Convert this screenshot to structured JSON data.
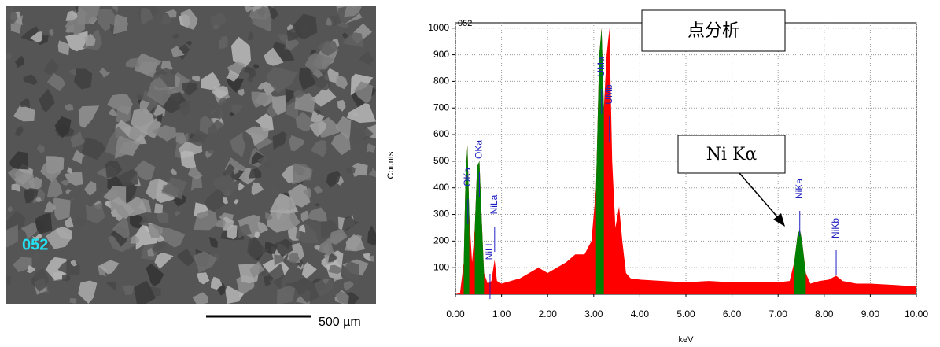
{
  "image": {
    "label": "052",
    "scale_bar": "500 µm"
  },
  "chart_data": {
    "type": "area",
    "title": "052",
    "ylabel": "Counts",
    "xlabel": "keV",
    "annotations": [
      "点分析",
      "Ni Kα"
    ],
    "xlim": [
      0,
      10
    ],
    "ylim": [
      0,
      1020
    ],
    "xticks": [
      {
        "value": 0,
        "label": "0.00"
      },
      {
        "value": 1,
        "label": "1.00"
      },
      {
        "value": 2,
        "label": "2.00"
      },
      {
        "value": 3,
        "label": "3.00"
      },
      {
        "value": 4,
        "label": "4.00"
      },
      {
        "value": 5,
        "label": "5.00"
      },
      {
        "value": 6,
        "label": "6.00"
      },
      {
        "value": 7,
        "label": "7.00"
      },
      {
        "value": 8,
        "label": "8.00"
      },
      {
        "value": 9,
        "label": "9.00"
      },
      {
        "value": 10,
        "label": "10.00"
      }
    ],
    "yticks": [
      100,
      200,
      300,
      400,
      500,
      600,
      700,
      800,
      900,
      1000
    ],
    "grid": true,
    "x": [
      0,
      0.1,
      0.18,
      0.22,
      0.26,
      0.3,
      0.36,
      0.42,
      0.47,
      0.52,
      0.57,
      0.62,
      0.7,
      0.78,
      0.85,
      0.9,
      1.0,
      1.2,
      1.4,
      1.6,
      1.8,
      2.0,
      2.2,
      2.4,
      2.6,
      2.8,
      2.95,
      3.05,
      3.12,
      3.17,
      3.22,
      3.28,
      3.34,
      3.4,
      3.47,
      3.55,
      3.62,
      3.7,
      3.8,
      4.0,
      4.5,
      5.0,
      5.5,
      6.0,
      6.5,
      7.0,
      7.25,
      7.35,
      7.42,
      7.47,
      7.52,
      7.6,
      7.7,
      7.9,
      8.1,
      8.26,
      8.4,
      8.7,
      9.0,
      9.5,
      10.0
    ],
    "series": [
      {
        "color": "#ff0000",
        "values": [
          0,
          5,
          120,
          450,
          560,
          300,
          120,
          250,
          480,
          500,
          280,
          80,
          40,
          50,
          130,
          50,
          40,
          50,
          60,
          80,
          100,
          80,
          100,
          120,
          150,
          150,
          200,
          400,
          900,
          1000,
          700,
          900,
          1000,
          500,
          250,
          330,
          200,
          80,
          60,
          55,
          50,
          45,
          50,
          45,
          45,
          45,
          50,
          120,
          220,
          245,
          200,
          80,
          40,
          50,
          55,
          70,
          50,
          40,
          40,
          35,
          30
        ]
      },
      {
        "color": "#008000",
        "values": [
          null,
          null,
          120,
          450,
          560,
          300,
          null,
          250,
          480,
          500,
          280,
          80,
          null,
          null,
          null,
          null,
          null,
          null,
          null,
          null,
          null,
          null,
          null,
          null,
          null,
          null,
          null,
          400,
          900,
          1000,
          700,
          null,
          null,
          null,
          null,
          null,
          null,
          null,
          null,
          null,
          null,
          null,
          null,
          null,
          null,
          null,
          null,
          120,
          220,
          245,
          200,
          80,
          null,
          null,
          null,
          null,
          null,
          null,
          null,
          null,
          null
        ]
      }
    ],
    "peak_labels": [
      {
        "label": "OKa",
        "x": 0.27
      },
      {
        "label": "OKa",
        "x": 0.52
      },
      {
        "label": "NiLl",
        "x": 0.75
      },
      {
        "label": "NiLa",
        "x": 0.85
      },
      {
        "label": "UMa",
        "x": 3.17
      },
      {
        "label": "UMb",
        "x": 3.34
      },
      {
        "label": "NiKa",
        "x": 7.47
      },
      {
        "label": "NiKb",
        "x": 8.26
      }
    ]
  }
}
